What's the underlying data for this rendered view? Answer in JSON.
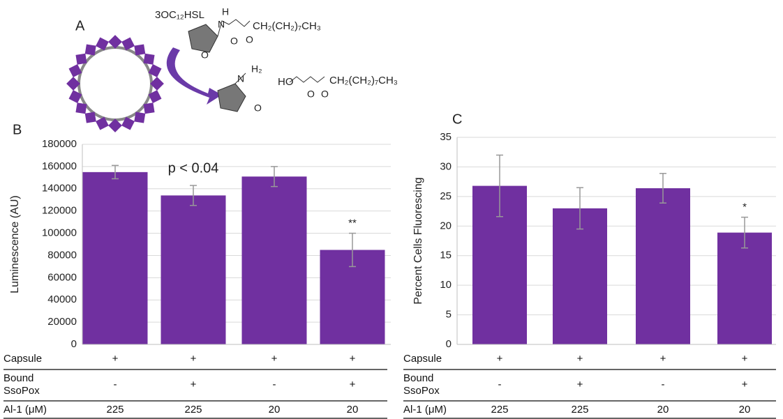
{
  "diagram": {
    "label": "A",
    "texts": [
      "3OC₁₂HSL",
      "H",
      "N",
      "CH₂(CH₂)₇CH₃",
      "O",
      "O",
      "O",
      "H₂",
      "N",
      "HO",
      "CH₂(CH₂)₇CH₃",
      "O",
      "O",
      "O"
    ]
  },
  "chart_data": [
    {
      "type": "bar",
      "panel": "B",
      "ylabel": "Luminescence (AU)",
      "color": "#7030a0",
      "error_color": "#999999",
      "grid": true,
      "ylim": [
        0,
        180000
      ],
      "yticks": [
        0,
        20000,
        40000,
        60000,
        80000,
        100000,
        120000,
        140000,
        160000,
        180000
      ],
      "values": [
        155000,
        134000,
        151000,
        85000
      ],
      "errors": [
        6000,
        9000,
        9000,
        15000
      ],
      "annotations": [
        null,
        "p < 0.04",
        null,
        "**"
      ],
      "table": {
        "rows": [
          {
            "label": "Capsule",
            "cells": [
              "+",
              "+",
              "+",
              "+"
            ]
          },
          {
            "label": "Bound SsoPox",
            "cells": [
              "-",
              "+",
              "-",
              "+"
            ]
          },
          {
            "label": "Al-1 (μM)",
            "cells": [
              "225",
              "225",
              "20",
              "20"
            ]
          }
        ]
      }
    },
    {
      "type": "bar",
      "panel": "C",
      "ylabel": "Percent Cells Fluorescing",
      "color": "#7030a0",
      "error_color": "#999999",
      "grid": true,
      "ylim": [
        0,
        35
      ],
      "yticks": [
        0,
        5,
        10,
        15,
        20,
        25,
        30,
        35
      ],
      "values": [
        26.8,
        23,
        26.4,
        18.9
      ],
      "errors": [
        5.2,
        3.5,
        2.5,
        2.6
      ],
      "annotations": [
        null,
        null,
        null,
        "*"
      ],
      "table": {
        "rows": [
          {
            "label": "Capsule",
            "cells": [
              "+",
              "+",
              "+",
              "+"
            ]
          },
          {
            "label": "Bound SsoPox",
            "cells": [
              "-",
              "+",
              "-",
              "+"
            ]
          },
          {
            "label": "Al-1 (μM)",
            "cells": [
              "225",
              "225",
              "20",
              "20"
            ]
          }
        ]
      }
    }
  ]
}
